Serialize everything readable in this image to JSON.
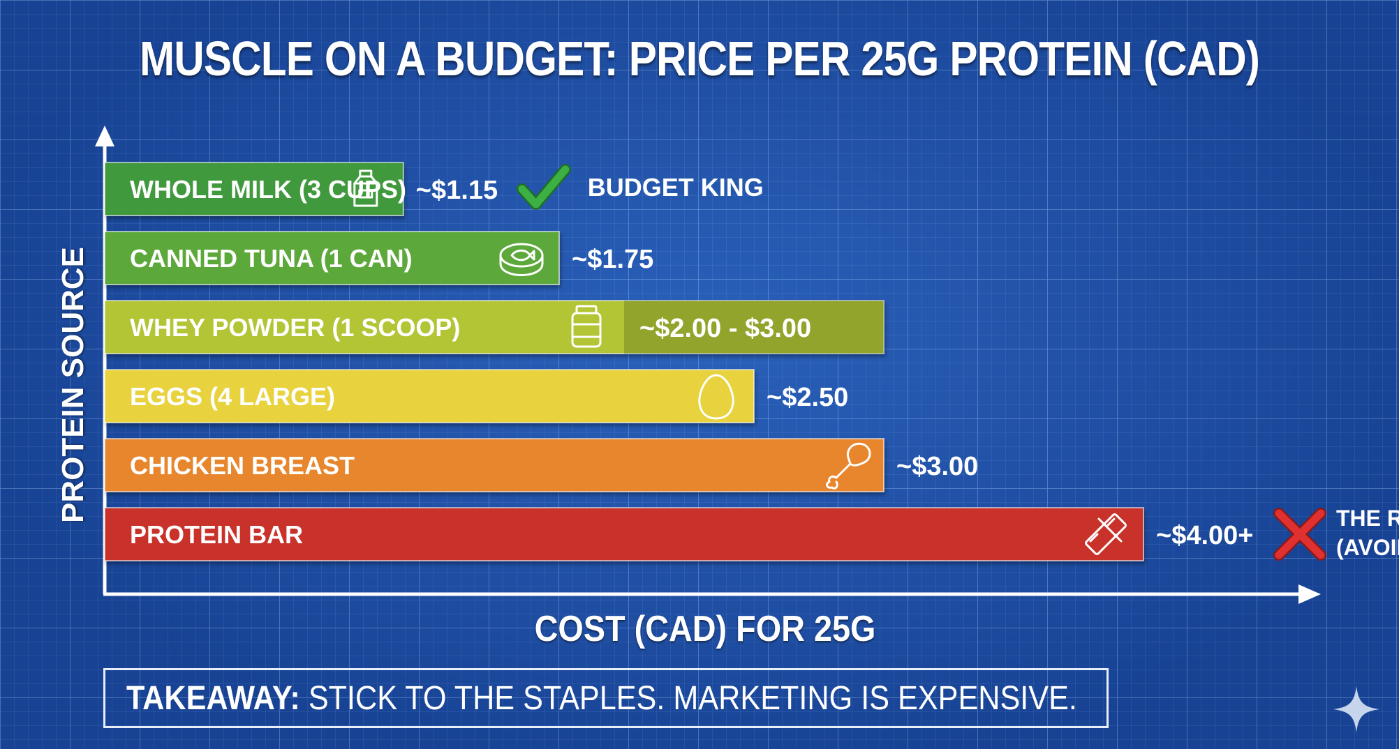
{
  "title": "MUSCLE ON A BUDGET: PRICE PER 25G PROTEIN (CAD)",
  "colors": {
    "background": "#1c4fa8",
    "milk": "#3f9a3c",
    "tuna": "#5da83a",
    "whey": "#b3c434",
    "eggs": "#e8d23c",
    "chicken": "#e8862e",
    "bar": "#c8332c",
    "check": "#3cb043",
    "cross": "#e03030"
  },
  "chart_data": {
    "type": "bar",
    "orientation": "horizontal",
    "title": "MUSCLE ON A BUDGET: PRICE PER 25G PROTEIN (CAD)",
    "xlabel": "COST (CAD) FOR 25G",
    "ylabel": "PROTEIN SOURCE",
    "xlim": [
      0,
      4.5
    ],
    "categories": [
      "WHOLE MILK (3 CUPS)",
      "CANNED TUNA (1 CAN)",
      "WHEY POWDER (1 SCOOP)",
      "EGGS (4 LARGE)",
      "CHICKEN BREAST",
      "PROTEIN BAR"
    ],
    "values": [
      1.15,
      1.75,
      3.0,
      2.5,
      3.0,
      4.0
    ],
    "range_low": [
      null,
      null,
      2.0,
      null,
      null,
      null
    ],
    "value_labels": [
      "~$1.15",
      "~$1.75",
      "~$2.00 - $3.00",
      "~$2.50",
      "~$3.00",
      "~$4.00+"
    ],
    "icons": [
      "milk-carton-icon",
      "tuna-can-icon",
      "protein-jar-icon",
      "egg-icon",
      "chicken-drumstick-icon",
      "protein-bar-icon"
    ],
    "annotations": [
      {
        "category": "WHOLE MILK (3 CUPS)",
        "icon": "check-icon",
        "text": [
          "BUDGET KING"
        ]
      },
      {
        "category": "PROTEIN BAR",
        "icon": "cross-icon",
        "text": [
          "THE RIP-OFF",
          "(AVOID)"
        ]
      }
    ]
  },
  "takeaway": {
    "label": "TAKEAWAY:",
    "text": " STICK TO THE STAPLES. MARKETING IS EXPENSIVE."
  }
}
